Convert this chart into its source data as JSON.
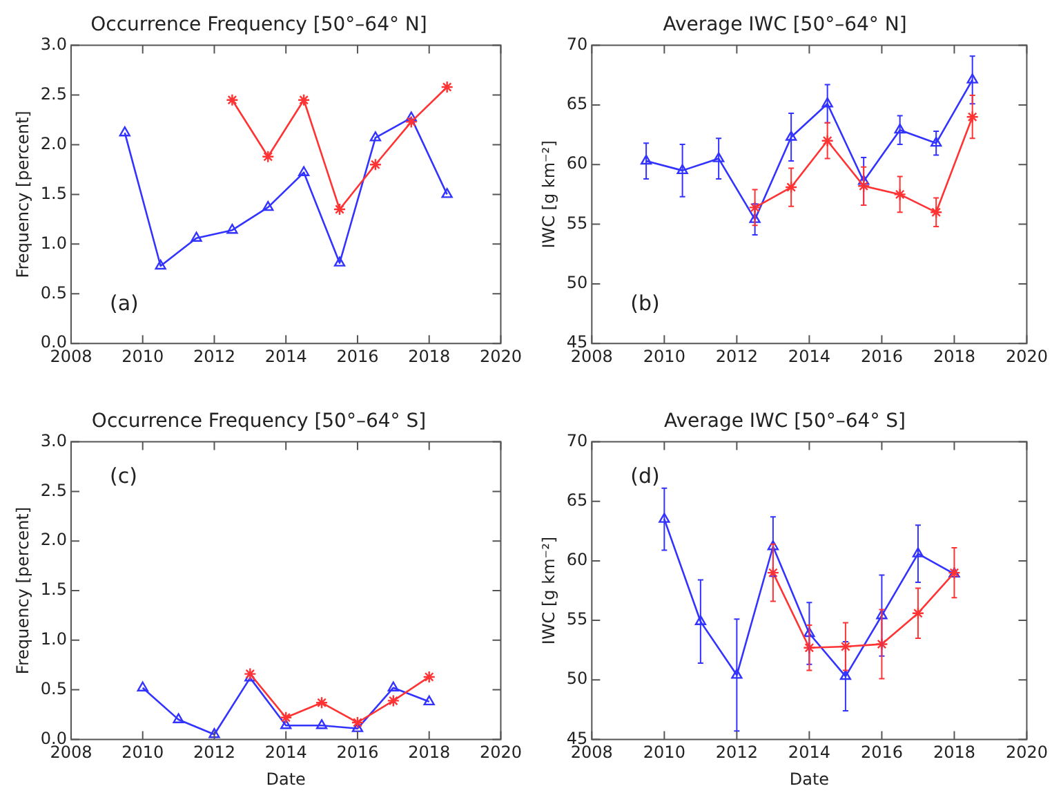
{
  "chart_data": [
    {
      "type": "line",
      "title": "Occurrence Frequency [50°–64° N]",
      "ylabel": "Frequency [percent]",
      "annotations": [
        "(a)"
      ],
      "xlim": [
        2008,
        2020
      ],
      "xticks": [
        2008,
        2010,
        2012,
        2014,
        2016,
        2018,
        2020
      ],
      "ylim": [
        0,
        3
      ],
      "yticks": [
        {
          "value": 0,
          "label": "0.0"
        },
        {
          "value": 0.5,
          "label": "0.5"
        },
        {
          "value": 1,
          "label": "1.0"
        },
        {
          "value": 1.5,
          "label": "1.5"
        },
        {
          "value": 2,
          "label": "2.0"
        },
        {
          "value": 2.5,
          "label": "2.5"
        },
        {
          "value": 3,
          "label": "3.0"
        }
      ],
      "grid": false,
      "legend": false,
      "series": [
        {
          "color": "#3333ff",
          "marker": "triangle",
          "x": [
            2009.5,
            2010.5,
            2011.5,
            2012.5,
            2013.5,
            2014.5,
            2015.5,
            2016.5,
            2017.5,
            2018.5
          ],
          "values": [
            2.12,
            0.78,
            1.06,
            1.14,
            1.37,
            1.72,
            0.81,
            2.07,
            2.27,
            1.5
          ]
        },
        {
          "color": "#ff3333",
          "marker": "cross",
          "x": [
            2012.5,
            2013.5,
            2014.5,
            2015.5,
            2016.5,
            2017.5,
            2018.5
          ],
          "values": [
            2.45,
            1.88,
            2.45,
            1.35,
            1.8,
            2.23,
            2.58
          ]
        }
      ]
    },
    {
      "type": "line",
      "title": "Average IWC [50°–64° N]",
      "ylabel": "IWC [g km⁻²]",
      "annotations": [
        "(b)"
      ],
      "xlim": [
        2008,
        2020
      ],
      "xticks": [
        2008,
        2010,
        2012,
        2014,
        2016,
        2018,
        2020
      ],
      "ylim": [
        45,
        70
      ],
      "yticks": [
        45,
        50,
        55,
        60,
        65,
        70
      ],
      "grid": false,
      "legend": false,
      "series": [
        {
          "color": "#3333ff",
          "marker": "triangle",
          "x": [
            2009.5,
            2010.5,
            2011.5,
            2012.5,
            2013.5,
            2014.5,
            2015.5,
            2016.5,
            2017.5,
            2018.5
          ],
          "values": [
            60.3,
            59.5,
            60.5,
            55.4,
            62.3,
            65.1,
            58.6,
            62.9,
            61.8,
            67.1
          ],
          "errors": [
            1.5,
            2.2,
            1.7,
            1.3,
            2.0,
            1.6,
            2.0,
            1.2,
            1.0,
            2.0
          ]
        },
        {
          "color": "#ff3333",
          "marker": "cross",
          "x": [
            2012.5,
            2013.5,
            2014.5,
            2015.5,
            2016.5,
            2017.5,
            2018.5
          ],
          "values": [
            56.4,
            58.1,
            62.0,
            58.2,
            57.5,
            56.0,
            64.0
          ],
          "errors": [
            1.5,
            1.6,
            1.5,
            1.6,
            1.5,
            1.2,
            1.8
          ]
        }
      ]
    },
    {
      "type": "line",
      "title": "Occurrence Frequency [50°–64° S]",
      "xlabel": "Date",
      "ylabel": "Frequency [percent]",
      "annotations": [
        "(c)"
      ],
      "xlim": [
        2008,
        2020
      ],
      "xticks": [
        2008,
        2010,
        2012,
        2014,
        2016,
        2018,
        2020
      ],
      "ylim": [
        0,
        3
      ],
      "yticks": [
        {
          "value": 0,
          "label": "0.0"
        },
        {
          "value": 0.5,
          "label": "0.5"
        },
        {
          "value": 1,
          "label": "1.0"
        },
        {
          "value": 1.5,
          "label": "1.5"
        },
        {
          "value": 2,
          "label": "2.0"
        },
        {
          "value": 2.5,
          "label": "2.5"
        },
        {
          "value": 3,
          "label": "3.0"
        }
      ],
      "grid": false,
      "legend": false,
      "series": [
        {
          "color": "#3333ff",
          "marker": "triangle",
          "x": [
            2010,
            2011,
            2012,
            2013,
            2014,
            2015,
            2016,
            2017,
            2018
          ],
          "values": [
            0.52,
            0.2,
            0.05,
            0.62,
            0.14,
            0.14,
            0.11,
            0.52,
            0.38
          ]
        },
        {
          "color": "#ff3333",
          "marker": "cross",
          "x": [
            2013,
            2014,
            2015,
            2016,
            2017,
            2018
          ],
          "values": [
            0.66,
            0.22,
            0.37,
            0.17,
            0.39,
            0.63
          ]
        }
      ]
    },
    {
      "type": "line",
      "title": "Average IWC [50°–64° S]",
      "xlabel": "Date",
      "ylabel": "IWC [g km⁻²]",
      "annotations": [
        "(d)"
      ],
      "xlim": [
        2008,
        2020
      ],
      "xticks": [
        2008,
        2010,
        2012,
        2014,
        2016,
        2018,
        2020
      ],
      "ylim": [
        45,
        70
      ],
      "yticks": [
        45,
        50,
        55,
        60,
        65,
        70
      ],
      "grid": false,
      "legend": false,
      "series": [
        {
          "color": "#3333ff",
          "marker": "triangle",
          "x": [
            2010,
            2011,
            2012,
            2013,
            2014,
            2015,
            2016,
            2017,
            2018
          ],
          "values": [
            63.5,
            54.9,
            50.4,
            61.2,
            53.9,
            50.3,
            55.4,
            60.6,
            58.9
          ],
          "errors": [
            2.6,
            3.5,
            4.7,
            2.5,
            2.6,
            2.9,
            3.4,
            2.4,
            null
          ]
        },
        {
          "color": "#ff3333",
          "marker": "cross",
          "x": [
            2013,
            2014,
            2015,
            2016,
            2017,
            2018
          ],
          "values": [
            59.0,
            52.7,
            52.8,
            53.0,
            55.6,
            59.0
          ],
          "errors": [
            2.4,
            1.9,
            2.0,
            2.9,
            2.1,
            2.1
          ]
        }
      ]
    }
  ]
}
